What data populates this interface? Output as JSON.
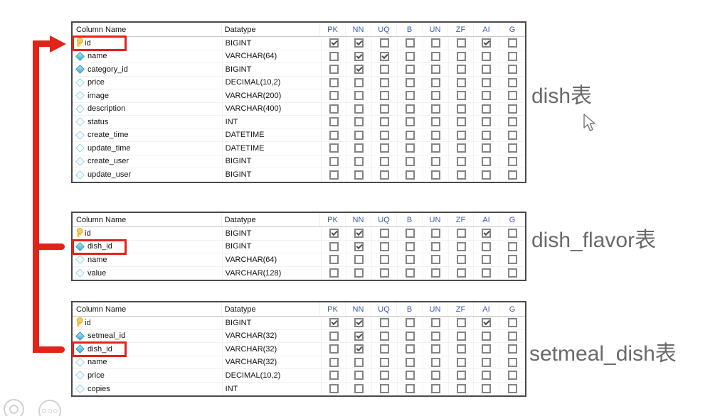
{
  "header": {
    "column_name": "Column Name",
    "datatype": "Datatype",
    "flags": [
      "PK",
      "NN",
      "UQ",
      "B",
      "UN",
      "ZF",
      "AI",
      "G"
    ]
  },
  "tables": [
    {
      "label": "dish表",
      "rows": [
        {
          "name": "id",
          "datatype": "BIGINT",
          "icon": "key",
          "flags": [
            "PK",
            "NN",
            "AI"
          ],
          "highlight": true
        },
        {
          "name": "name",
          "datatype": "VARCHAR(64)",
          "icon": "diamond-filled",
          "flags": [
            "NN",
            "UQ"
          ]
        },
        {
          "name": "category_id",
          "datatype": "BIGINT",
          "icon": "diamond-filled",
          "flags": [
            "NN"
          ]
        },
        {
          "name": "price",
          "datatype": "DECIMAL(10,2)",
          "icon": "diamond-open",
          "flags": []
        },
        {
          "name": "image",
          "datatype": "VARCHAR(200)",
          "icon": "diamond-open",
          "flags": []
        },
        {
          "name": "description",
          "datatype": "VARCHAR(400)",
          "icon": "diamond-open",
          "flags": []
        },
        {
          "name": "status",
          "datatype": "INT",
          "icon": "diamond-open",
          "flags": []
        },
        {
          "name": "create_time",
          "datatype": "DATETIME",
          "icon": "diamond-open",
          "flags": []
        },
        {
          "name": "update_time",
          "datatype": "DATETIME",
          "icon": "diamond-open",
          "flags": []
        },
        {
          "name": "create_user",
          "datatype": "BIGINT",
          "icon": "diamond-open",
          "flags": []
        },
        {
          "name": "update_user",
          "datatype": "BIGINT",
          "icon": "diamond-open",
          "flags": []
        }
      ]
    },
    {
      "label": "dish_flavor表",
      "rows": [
        {
          "name": "id",
          "datatype": "BIGINT",
          "icon": "key",
          "flags": [
            "PK",
            "NN",
            "AI"
          ]
        },
        {
          "name": "dish_id",
          "datatype": "BIGINT",
          "icon": "diamond-filled",
          "flags": [
            "NN"
          ],
          "highlight": true
        },
        {
          "name": "name",
          "datatype": "VARCHAR(64)",
          "icon": "diamond-open",
          "flags": []
        },
        {
          "name": "value",
          "datatype": "VARCHAR(128)",
          "icon": "diamond-open",
          "flags": []
        }
      ]
    },
    {
      "label": "setmeal_dish表",
      "rows": [
        {
          "name": "id",
          "datatype": "BIGINT",
          "icon": "key",
          "flags": [
            "PK",
            "NN",
            "AI"
          ]
        },
        {
          "name": "setmeal_id",
          "datatype": "VARCHAR(32)",
          "icon": "diamond-filled",
          "flags": [
            "NN"
          ]
        },
        {
          "name": "dish_id",
          "datatype": "VARCHAR(32)",
          "icon": "diamond-filled",
          "flags": [
            "NN"
          ],
          "highlight": true
        },
        {
          "name": "name",
          "datatype": "VARCHAR(32)",
          "icon": "diamond-open",
          "flags": []
        },
        {
          "name": "price",
          "datatype": "DECIMAL(10,2)",
          "icon": "diamond-open",
          "flags": []
        },
        {
          "name": "copies",
          "datatype": "INT",
          "icon": "diamond-open",
          "flags": []
        }
      ]
    }
  ],
  "colors": {
    "annotation_red": "#e2231a",
    "flag_header_blue": "#3b5cad",
    "label_gray": "#6a6a6a",
    "key_icon_yellow": "#f2c23c",
    "diamond_cyan": "#39afd4"
  },
  "icons": {
    "player_button_1": "record-ring-icon",
    "player_button_2": "three-dots-icon",
    "cursor": "mouse-arrow-cursor"
  }
}
